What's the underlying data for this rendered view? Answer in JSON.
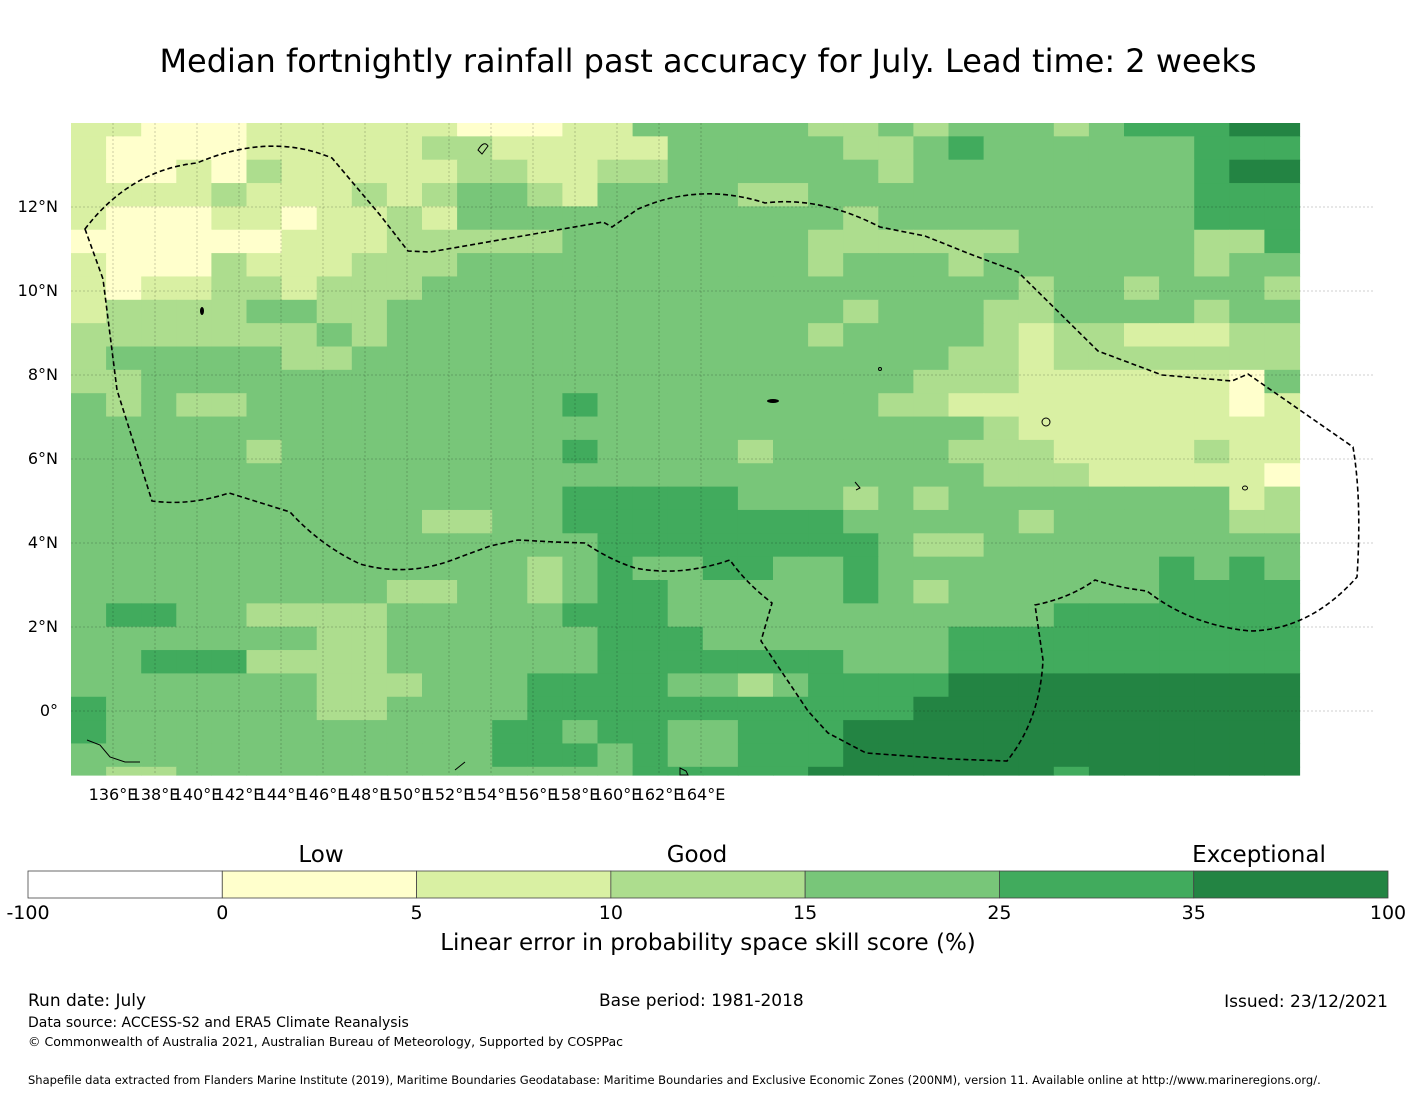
{
  "title": "Median fortnightly rainfall past accuracy for July. Lead time: 2 weeks",
  "map": {
    "lat_labels": [
      "12°N",
      "10°N",
      "8°N",
      "6°N",
      "4°N",
      "2°N",
      "0°"
    ],
    "lon_labels": [
      "136°E",
      "138°E",
      "140°E",
      "142°E",
      "144°E",
      "146°E",
      "148°E",
      "150°E",
      "152°E",
      "154°E",
      "156°E",
      "158°E",
      "160°E",
      "162°E",
      "164°E"
    ],
    "colors": [
      "#ffffff",
      "#ffffcc",
      "#d9f0a3",
      "#addd8e",
      "#78c679",
      "#41ab5d",
      "#238443"
    ],
    "grid_classes": [
      "22111222222111224444433434443455566",
      "21111222223322222444443345444444555",
      "21121322222332233444444344444444566",
      "22223222323443244443344444444444555",
      "21112212232444444444443444444444555",
      "11111122233333444444433333344444335",
      "21113222333444444444434443444444344",
      "21223323334444444444444444434434443",
      "23333443344444444444443444334444344",
      "33333334344444444444434444323322233",
      "34444433444444444444444443323333333",
      "33444444444444444444444433322222214",
      "43433444444444544444444332222222212",
      "44444444444444444444444444322222222",
      "44444344444444544443444443332222322",
      "44444444444444444444444444333222221",
      "44444444444444555554443434444444423",
      "44444444443344555555554444434444433",
      "44444444444444455555555433444444444",
      "44444444444443454455445444444445454",
      "44444444433443455444445434444445555",
      "45544333344444555444444444445555555",
      "44444443344444455544444445555555555",
      "44555333344444455555554445555555555",
      "44444443334445555443455556666666666",
      "54444443344445555555555566666666666",
      "54444444444455455445556666666666666",
      "44444444444455545445556666666666666",
      "43344444444444445555566666665666666",
      "44444334444444444455666666666666666",
      "34432344444444444555666666666666666",
      "22443443332444444555666666666666666",
      "44221433223334444555566666666666666",
      "43211444422244444344566666666666666"
    ]
  },
  "colorbar": {
    "categories": [
      "Low",
      "Good",
      "Exceptional"
    ],
    "ticks": [
      "-100",
      "0",
      "5",
      "10",
      "15",
      "25",
      "35",
      "100"
    ],
    "label": "Linear error in probability space skill score (%)"
  },
  "footer": {
    "run_date": "Run date: July",
    "base_period": "Base period: 1981-2018",
    "issued": "Issued: 23/12/2021",
    "data_source": "Data source: ACCESS-S2 and ERA5 Climate Reanalysis",
    "copyright": "© Commonwealth of Australia 2021, Australian Bureau of Meteorology, Supported by COSPPac",
    "shapefile": "Shapefile data extracted from Flanders Marine Institute (2019), Maritime Boundaries Geodatabase: Maritime Boundaries and Exclusive Economic Zones (200NM), version 11. Available online at http://www.marineregions.org/."
  }
}
